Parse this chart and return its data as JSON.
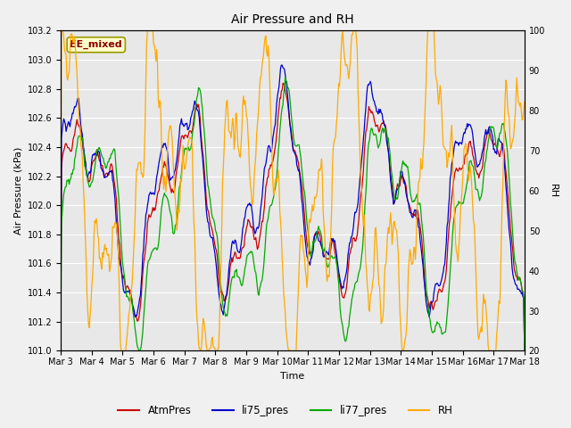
{
  "title": "Air Pressure and RH",
  "xlabel": "Time",
  "ylabel_left": "Air Pressure (kPa)",
  "ylabel_right": "RH",
  "annotation": "EE_mixed",
  "ylim_left": [
    101.0,
    103.2
  ],
  "ylim_right": [
    20,
    100
  ],
  "yticks_left": [
    101.0,
    101.2,
    101.4,
    101.6,
    101.8,
    102.0,
    102.2,
    102.4,
    102.6,
    102.8,
    103.0,
    103.2
  ],
  "yticks_right": [
    20,
    30,
    40,
    50,
    60,
    70,
    80,
    90,
    100
  ],
  "xtick_labels": [
    "Mar 3",
    "Mar 4",
    "Mar 5",
    "Mar 6",
    "Mar 7",
    "Mar 8",
    "Mar 9",
    "Mar 10",
    "Mar 11",
    "Mar 12",
    "Mar 13",
    "Mar 14",
    "Mar 15",
    "Mar 16",
    "Mar 17",
    "Mar 18"
  ],
  "colors": {
    "AtmPres": "#cc0000",
    "li75_pres": "#0000cc",
    "li77_pres": "#00aa00",
    "RH": "#ffaa00"
  },
  "fig_facecolor": "#f0f0f0",
  "axes_facecolor": "#e8e8e8",
  "annotation_facecolor": "#ffffcc",
  "annotation_edgecolor": "#999900",
  "annotation_textcolor": "#880000",
  "grid_color": "#ffffff",
  "n_points": 600,
  "seed": 42
}
